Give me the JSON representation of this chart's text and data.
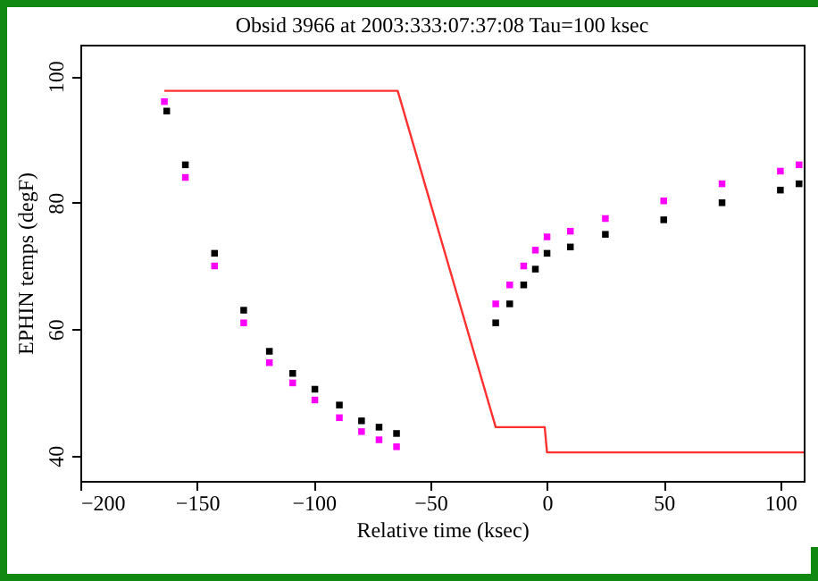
{
  "chart_data": {
    "type": "scatter",
    "title": "Obsid 3966 at 2003:333:07:37:08   Tau=100 ksec",
    "xlabel": "Relative time (ksec)",
    "ylabel": "EPHIN temps (degF)",
    "xlim": [
      -200,
      110
    ],
    "xticks": [
      -200,
      -150,
      -100,
      -50,
      0,
      50,
      100
    ],
    "ylim": [
      36,
      105
    ],
    "yticks": [
      40,
      60,
      80,
      100
    ],
    "grid": false,
    "marker": "square",
    "series": [
      {
        "type": "line",
        "marker": "none",
        "color": "#ff3030",
        "x": [
          -164,
          -64,
          -22,
          -1,
          0,
          110
        ],
        "values": [
          97.7,
          97.7,
          44.5,
          44.5,
          40.5,
          40.5
        ]
      },
      {
        "color": "#ff00ff",
        "x": [
          -164,
          -155,
          -142.5,
          -130,
          -119,
          -109,
          -99.5,
          -89,
          -79.5,
          -72,
          -64.5,
          -22,
          -16,
          -10,
          -5,
          0,
          10,
          25,
          50,
          75,
          100,
          108
        ],
        "values": [
          96,
          84,
          70,
          61,
          54.7,
          51.5,
          48.8,
          46,
          43.8,
          42.5,
          41.4,
          64,
          67,
          70,
          72.5,
          74.6,
          75.5,
          77.5,
          80.3,
          83,
          85,
          86
        ]
      },
      {
        "color": "#000000",
        "x": [
          -163,
          -155,
          -142.5,
          -130,
          -119,
          -109,
          -99.5,
          -89,
          -79.5,
          -72,
          -64.5,
          -22,
          -16,
          -10,
          -5,
          0,
          10,
          25,
          50,
          75,
          100,
          108
        ],
        "values": [
          94.5,
          86,
          72,
          63,
          56.5,
          53,
          50.5,
          48,
          45.5,
          44.5,
          43.5,
          61,
          64,
          67,
          69.5,
          72,
          73,
          75,
          77.3,
          80,
          82,
          83
        ]
      }
    ]
  }
}
